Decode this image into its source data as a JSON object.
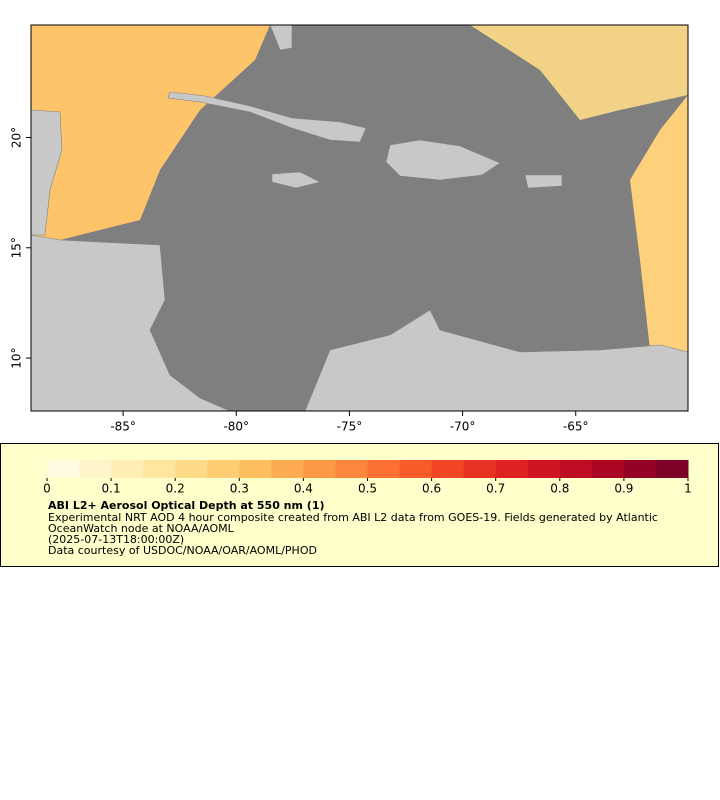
{
  "map": {
    "xlim": [
      -89.07,
      -60.04
    ],
    "ylim": [
      7.6,
      25.1
    ],
    "xticks": [
      {
        "value": -85,
        "label": "-85°"
      },
      {
        "value": -80,
        "label": "-80°"
      },
      {
        "value": -75,
        "label": "-75°"
      },
      {
        "value": -70,
        "label": "-70°"
      },
      {
        "value": -65,
        "label": "-65°"
      }
    ],
    "yticks": [
      {
        "value": 10,
        "label": "10°"
      },
      {
        "value": 15,
        "label": "15°"
      },
      {
        "value": 20,
        "label": "20°"
      }
    ]
  },
  "colorbar": {
    "clim": [
      0,
      1
    ],
    "ticks": [
      0,
      0.1,
      0.2,
      0.3,
      0.4,
      0.5,
      0.6,
      0.7,
      0.8,
      0.9,
      1
    ],
    "colors": [
      "#fffbe0",
      "#fff5cb",
      "#ffefb4",
      "#fee69e",
      "#fedb88",
      "#fecd73",
      "#febf5f",
      "#fdac51",
      "#fd9945",
      "#fc863b",
      "#fc7133",
      "#f85c2b",
      "#f24626",
      "#e93322",
      "#de2222",
      "#cf1521",
      "#be0c22",
      "#aa0623",
      "#940325",
      "#7e0227"
    ]
  },
  "legend": {
    "title": "ABI L2+ Aerosol Optical Depth at 550 nm (1)",
    "description": [
      "Experimental NRT AOD 4 hour composite created from ABI L2 data from GOES-19. Fields generated by Atlantic",
      "OceanWatch node at NOAA/AOML",
      "(2025-07-13T18:00:00Z)",
      "Data courtesy of USDOC/NOAA/OAR/AOML/PHOD"
    ]
  }
}
